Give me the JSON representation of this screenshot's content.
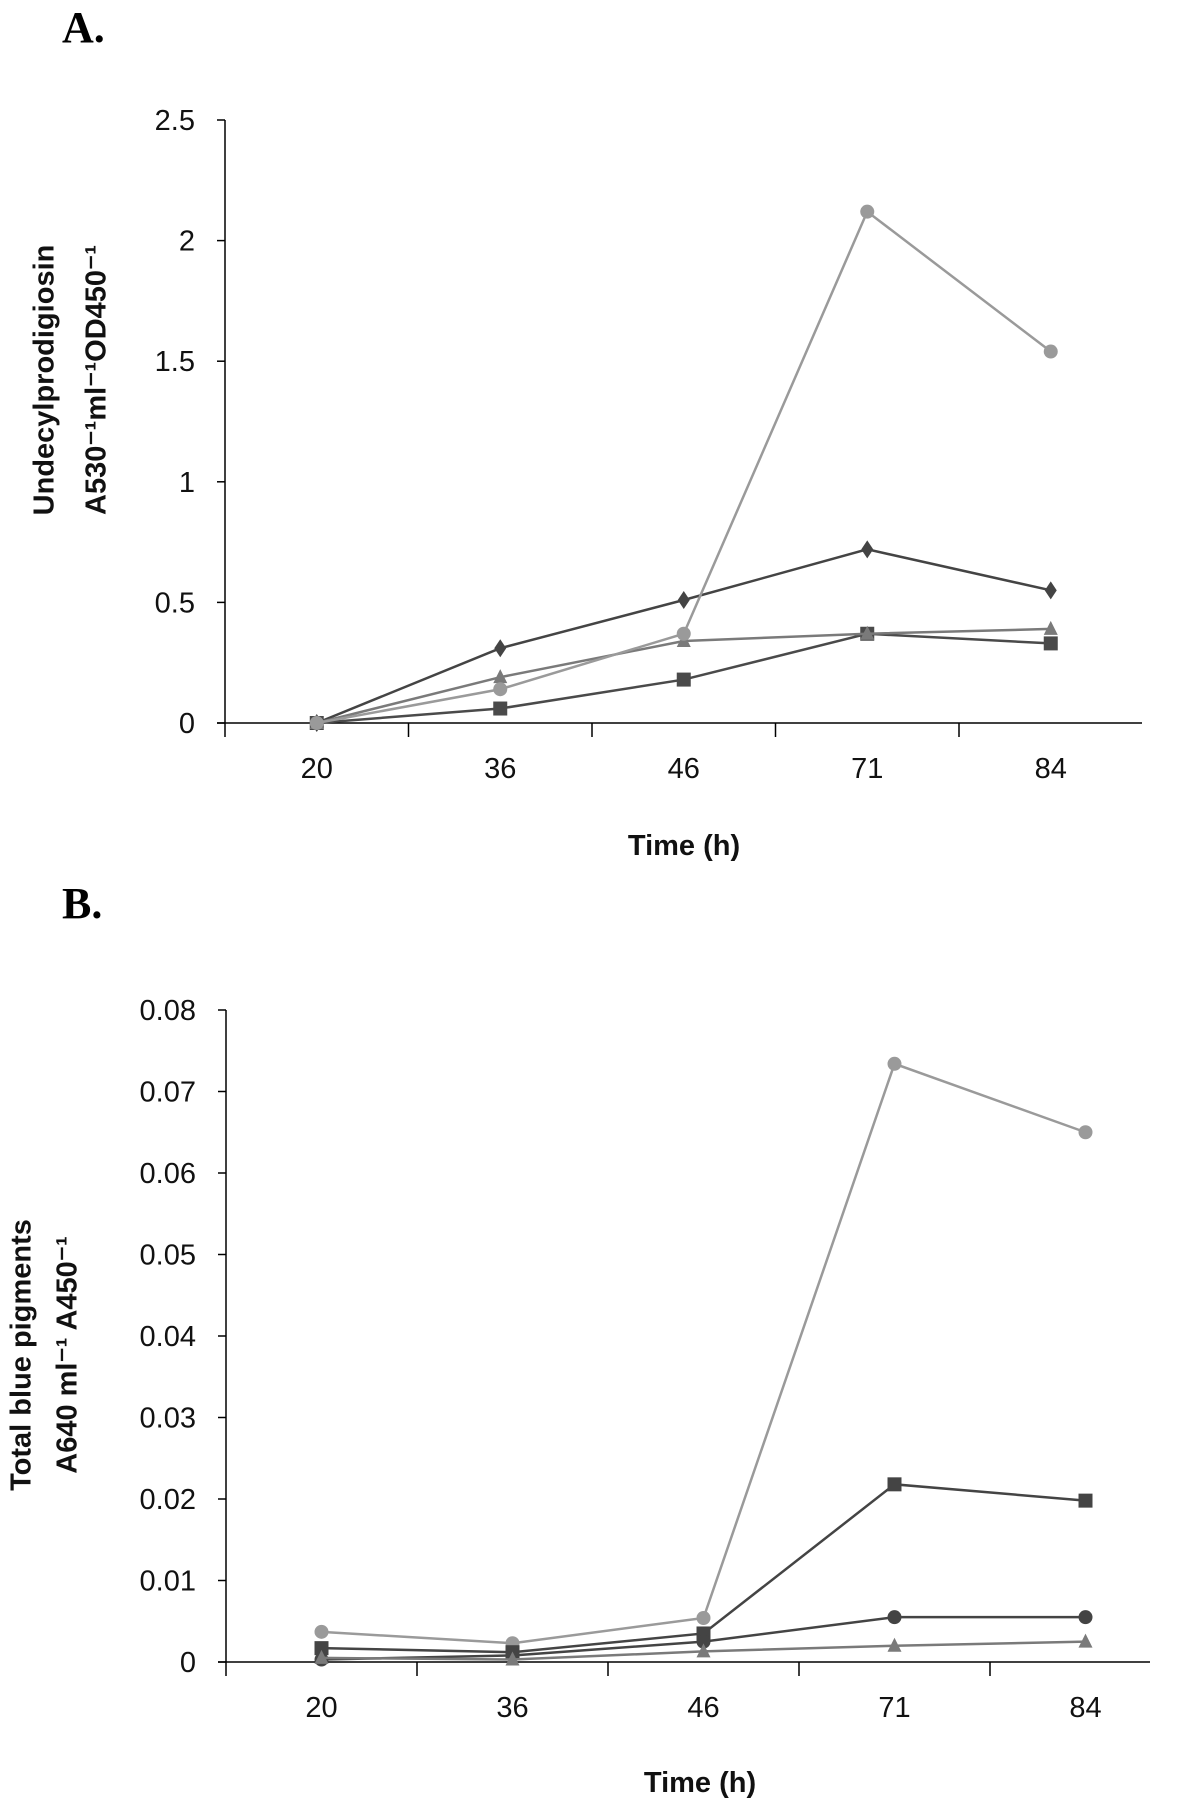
{
  "chart_data": [
    {
      "type": "line",
      "panel_label": "A.",
      "title": "",
      "xlabel": "Time (h)",
      "ylabel_lines": [
        "Undecylprodigiosin",
        "A530⁻¹ml⁻¹OD450⁻¹"
      ],
      "categories": [
        "20",
        "36",
        "46",
        "71",
        "84"
      ],
      "ylim": [
        0,
        2.5
      ],
      "yticks": [
        "0",
        "0.5",
        "1",
        "1.5",
        "2",
        "2.5"
      ],
      "series": [
        {
          "name": "diamond",
          "marker": "diamond",
          "color": "#444444",
          "values": [
            0,
            0.31,
            0.51,
            0.72,
            0.55
          ]
        },
        {
          "name": "square",
          "marker": "square",
          "color": "#4a4a4a",
          "values": [
            0,
            0.06,
            0.18,
            0.37,
            0.33
          ]
        },
        {
          "name": "triangle",
          "marker": "triangle",
          "color": "#7a7a7a",
          "values": [
            0,
            0.19,
            0.34,
            0.37,
            0.39
          ]
        },
        {
          "name": "circle",
          "marker": "circle",
          "color": "#9a9a9a",
          "values": [
            0,
            0.14,
            0.37,
            2.12,
            1.54
          ]
        }
      ]
    },
    {
      "type": "line",
      "panel_label": "B.",
      "title": "",
      "xlabel": "Time (h)",
      "ylabel_lines": [
        "Total blue pigments",
        "A640 ml⁻¹ A450⁻¹"
      ],
      "categories": [
        "20",
        "36",
        "46",
        "71",
        "84"
      ],
      "ylim": [
        0,
        0.08
      ],
      "yticks": [
        "0",
        "0.01",
        "0.02",
        "0.03",
        "0.04",
        "0.05",
        "0.06",
        "0.07",
        "0.08"
      ],
      "series": [
        {
          "name": "circle-light",
          "marker": "circle",
          "color": "#9a9a9a",
          "values": [
            0.0037,
            0.0023,
            0.0054,
            0.0734,
            0.065
          ]
        },
        {
          "name": "square",
          "marker": "square",
          "color": "#444444",
          "values": [
            0.0017,
            0.0012,
            0.0035,
            0.0218,
            0.0198
          ]
        },
        {
          "name": "circle-dark",
          "marker": "circle",
          "color": "#444444",
          "values": [
            0.0003,
            0.0008,
            0.0025,
            0.0055,
            0.0055
          ]
        },
        {
          "name": "triangle",
          "marker": "triangle",
          "color": "#7a7a7a",
          "values": [
            0.0005,
            0.0003,
            0.0013,
            0.002,
            0.0025
          ]
        }
      ]
    }
  ]
}
